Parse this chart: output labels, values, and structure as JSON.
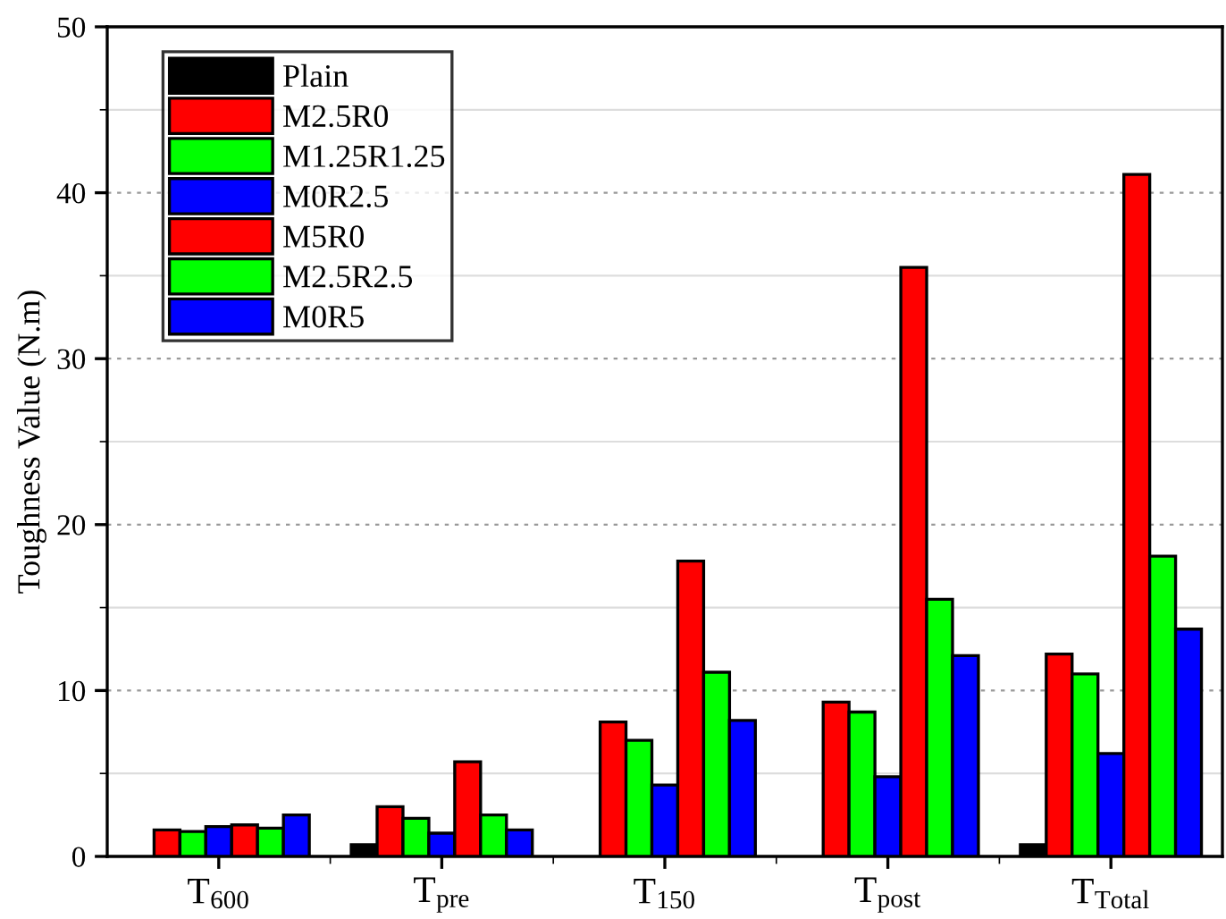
{
  "chart_data": {
    "type": "bar",
    "ylabel": "Toughness Value (N.m)",
    "categories": [
      "T$_{600}$",
      "T$_{pre}$",
      "T$_{150}$",
      "T$_{post}$",
      "T$_{Total}$"
    ],
    "series": [
      {
        "name": "Plain",
        "color": "#000000",
        "values": [
          null,
          0.7,
          null,
          null,
          0.7
        ]
      },
      {
        "name": "M2.5R0",
        "color": "#ff0000",
        "values": [
          1.6,
          3.0,
          8.1,
          9.3,
          12.2
        ]
      },
      {
        "name": "M1.25R1.25",
        "color": "#00ff00",
        "values": [
          1.5,
          2.3,
          7.0,
          8.7,
          11.0
        ]
      },
      {
        "name": "M0R2.5",
        "color": "#0000ff",
        "values": [
          1.8,
          1.4,
          4.3,
          4.8,
          6.2
        ]
      },
      {
        "name": "M5R0",
        "color": "#ff0000",
        "values": [
          1.9,
          5.7,
          17.8,
          35.5,
          41.1
        ]
      },
      {
        "name": "M2.5R2.5",
        "color": "#00ff00",
        "values": [
          1.7,
          2.5,
          11.1,
          15.5,
          18.1
        ]
      },
      {
        "name": "M0R5",
        "color": "#0000ff",
        "values": [
          2.5,
          1.6,
          8.2,
          12.1,
          13.7
        ]
      }
    ],
    "ylim": [
      0,
      50
    ],
    "yticks": [
      0,
      10,
      20,
      30,
      40,
      50
    ],
    "grid": "y",
    "legend": "top left"
  }
}
